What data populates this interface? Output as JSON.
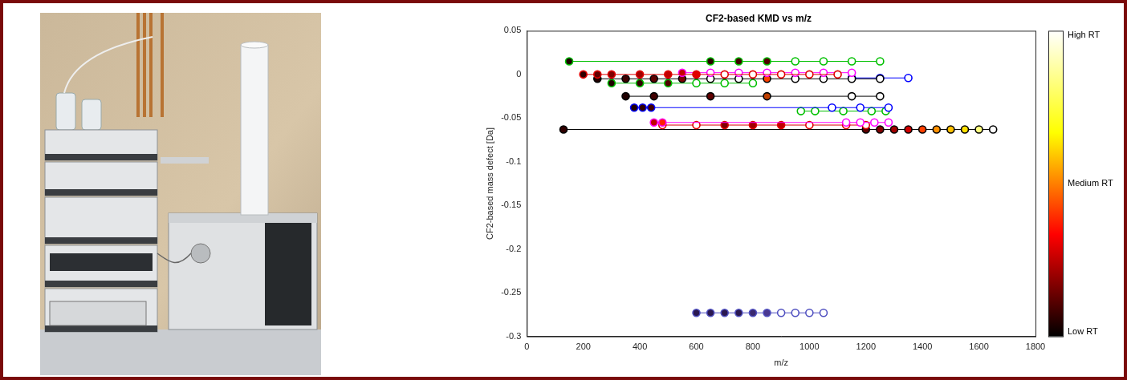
{
  "chart_data": {
    "type": "scatter",
    "title": "CF2-based KMD vs m/z",
    "x_label": "m/z",
    "y_label": "CF2-based mass defect [Da]",
    "xlim": [
      0,
      1800
    ],
    "xticks": [
      0,
      200,
      400,
      600,
      800,
      1000,
      1200,
      1400,
      1600,
      1800
    ],
    "ylim": [
      -0.3,
      0.05
    ],
    "yticks": [
      -0.3,
      -0.25,
      -0.2,
      -0.15,
      -0.1,
      -0.05,
      0,
      0.05
    ],
    "grid": false,
    "marker": "circle",
    "line_style": "solid",
    "colorbar": {
      "colors": [
        "#000000",
        "#ff0000",
        "#ffff00",
        "#ffffff"
      ],
      "labels": [
        "Low RT",
        "Medium RT",
        "High RT"
      ]
    },
    "series": [
      {
        "color": "#00c000",
        "x": [
          150,
          650,
          750,
          850,
          950,
          1050,
          1150,
          1250
        ],
        "values": [
          0.015,
          0.015,
          0.015,
          0.015,
          0.015,
          0.015,
          0.015,
          0.015
        ],
        "colors": [
          "#1a0000",
          "#2a0000",
          "#400000",
          "#500000",
          "#ffffff",
          "#ffffff",
          "#ffffff",
          "#ffffff"
        ]
      },
      {
        "color": "#e00000",
        "x": [
          200,
          250,
          300,
          400,
          500,
          600,
          700,
          800,
          900,
          1000,
          1100
        ],
        "values": [
          0,
          0,
          0,
          0,
          0,
          0,
          0,
          0,
          0,
          0,
          0
        ],
        "colors": [
          "#300000",
          "#600000",
          "#800000",
          "#a00000",
          "#c00000",
          "#e00000",
          "#ffffff",
          "#ffffff",
          "#ffffff",
          "#ffffff",
          "#ffffff"
        ]
      },
      {
        "color": "#ff00ff",
        "x": [
          550,
          650,
          750,
          850,
          950,
          1050,
          1150
        ],
        "values": [
          0.002,
          0.002,
          0.002,
          0.002,
          0.002,
          0.002,
          0.002
        ],
        "colors": [
          "#c00000",
          "#ffffff",
          "#ffffff",
          "#ffffff",
          "#ffffff",
          "#ffffff",
          "#ffffff"
        ]
      },
      {
        "color": "#000000",
        "x": [
          250,
          350,
          450,
          550,
          650,
          750,
          850,
          950,
          1050,
          1150,
          1250
        ],
        "values": [
          -0.005,
          -0.005,
          -0.005,
          -0.005,
          -0.005,
          -0.005,
          -0.005,
          -0.005,
          -0.005,
          -0.005,
          -0.005
        ],
        "colors": [
          "#200000",
          "#400000",
          "#600000",
          "#800000",
          "#ffffff",
          "#ffffff",
          "#ff4000",
          "#ffffff",
          "#ffffff",
          "#ffffff",
          "#ffffff"
        ]
      },
      {
        "color": "#0000ff",
        "x": [
          1150,
          1250,
          1350
        ],
        "values": [
          -0.004,
          -0.004,
          -0.004
        ],
        "colors": [
          "#200000",
          "#ffffff",
          "#ffffff"
        ]
      },
      {
        "color": "#00c000",
        "x": [
          300,
          400,
          500,
          600,
          700,
          800
        ],
        "values": [
          -0.01,
          -0.01,
          -0.01,
          -0.01,
          -0.01,
          -0.01
        ],
        "colors": [
          "#200000",
          "#300000",
          "#500000",
          "#ffffff",
          "#ffffff",
          "#ffffff"
        ]
      },
      {
        "color": "#000000",
        "x": [
          350,
          450,
          650,
          850,
          1150,
          1250
        ],
        "values": [
          -0.025,
          -0.025,
          -0.025,
          -0.025,
          -0.025,
          -0.025
        ],
        "colors": [
          "#200000",
          "#400000",
          "#600000",
          "#c04000",
          "#ffffff",
          "#ffffff"
        ]
      },
      {
        "color": "#0000ff",
        "x": [
          380,
          410,
          440,
          1080,
          1180,
          1280
        ],
        "values": [
          -0.038,
          -0.038,
          -0.038,
          -0.038,
          -0.038,
          -0.038
        ],
        "colors": [
          "#200000",
          "#300000",
          "#400000",
          "#ffffff",
          "#ffffff",
          "#ffffff"
        ]
      },
      {
        "color": "#00c000",
        "x": [
          970,
          1020,
          1120,
          1220,
          1270
        ],
        "values": [
          -0.042,
          -0.042,
          -0.042,
          -0.042,
          -0.042
        ],
        "colors": [
          "#ffffff",
          "#ffffff",
          "#ffffff",
          "#ffffff",
          "#ffffff"
        ]
      },
      {
        "color": "#ff00ff",
        "x": [
          450,
          480,
          1130,
          1180,
          1230,
          1280
        ],
        "values": [
          -0.055,
          -0.055,
          -0.055,
          -0.055,
          -0.055,
          -0.055
        ],
        "colors": [
          "#c00000",
          "#ff2000",
          "#ffffff",
          "#ffffff",
          "#ffffff",
          "#ffffff"
        ]
      },
      {
        "color": "#e00000",
        "x": [
          480,
          600,
          700,
          800,
          900,
          1000,
          1130,
          1200
        ],
        "values": [
          -0.058,
          -0.058,
          -0.058,
          -0.058,
          -0.058,
          -0.058,
          -0.058,
          -0.058
        ],
        "colors": [
          "#ffffff",
          "#ffffff",
          "#800000",
          "#a00000",
          "#c00000",
          "#ffffff",
          "#ffffff",
          "#ffffff"
        ]
      },
      {
        "color": "#000000",
        "x": [
          130,
          1200,
          1250,
          1300,
          1350,
          1400,
          1450,
          1500,
          1550,
          1600,
          1650
        ],
        "values": [
          -0.063,
          -0.063,
          -0.063,
          -0.063,
          -0.063,
          -0.063,
          -0.063,
          -0.063,
          -0.063,
          -0.063,
          -0.063
        ],
        "colors": [
          "#300000",
          "#600000",
          "#800000",
          "#a00000",
          "#d00000",
          "#ff4000",
          "#ff9000",
          "#ffc000",
          "#ffe000",
          "#ffff80",
          "#ffffff"
        ]
      },
      {
        "color": "#5050c0",
        "x": [
          600,
          650,
          700,
          750,
          800,
          850,
          900,
          950,
          1000,
          1050
        ],
        "values": [
          -0.273,
          -0.273,
          -0.273,
          -0.273,
          -0.273,
          -0.273,
          -0.273,
          -0.273,
          -0.273,
          -0.273
        ],
        "colors": [
          "#2a1850",
          "#2a1850",
          "#2a1850",
          "#2a1850",
          "#3a2870",
          "#4a3890",
          "#ffffff",
          "#ffffff",
          "#ffffff",
          "#ffffff"
        ]
      }
    ]
  }
}
